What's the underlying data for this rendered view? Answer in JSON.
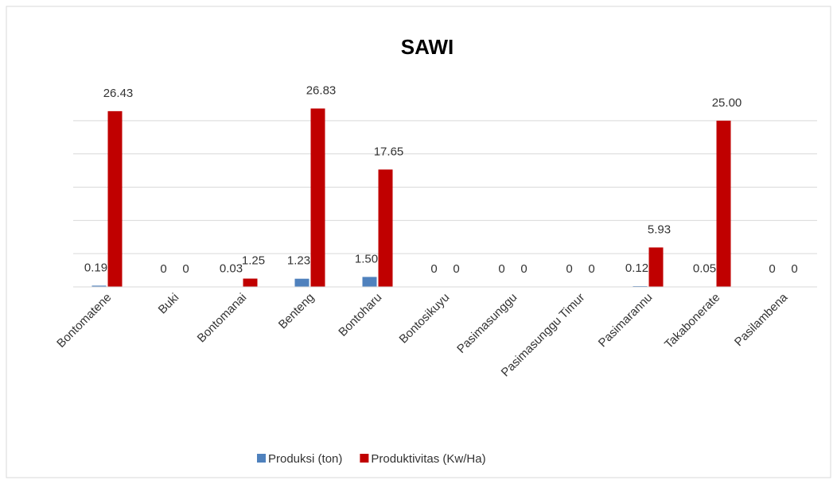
{
  "chart_data": {
    "type": "bar",
    "title": "SAWI",
    "categories": [
      "Bontomatene",
      "Buki",
      "Bontomanai",
      "Benteng",
      "Bontoharu",
      "Bontosikuyu",
      "Pasimasunggu",
      "Pasimasunggu Timur",
      "Pasimarannu",
      "Takabonerate",
      "Pasilambena"
    ],
    "series": [
      {
        "name": "Produksi (ton)",
        "color": "#4f81bd",
        "values": [
          0.19,
          0,
          0.03,
          1.23,
          1.5,
          0,
          0,
          0,
          0.12,
          0.05,
          0
        ],
        "value_labels": [
          "0.19",
          "0",
          "0.03",
          "1.23",
          "1.50",
          "0",
          "0",
          "0",
          "0.12",
          "0.05",
          "0"
        ]
      },
      {
        "name": "Produktivitas (Kw/Ha)",
        "color": "#c00000",
        "values": [
          26.43,
          0,
          1.25,
          26.83,
          17.65,
          0,
          0,
          0,
          5.93,
          25,
          0
        ],
        "value_labels": [
          "26.43",
          "0",
          "1.25",
          "26.83",
          "17.65",
          "0",
          "0",
          "0",
          "5.93",
          "25.00",
          "0"
        ]
      }
    ],
    "ylim": [
      0,
      30
    ],
    "yticks": [
      0,
      5,
      10,
      15,
      20,
      25
    ],
    "grid": true,
    "legend": "bottom"
  }
}
